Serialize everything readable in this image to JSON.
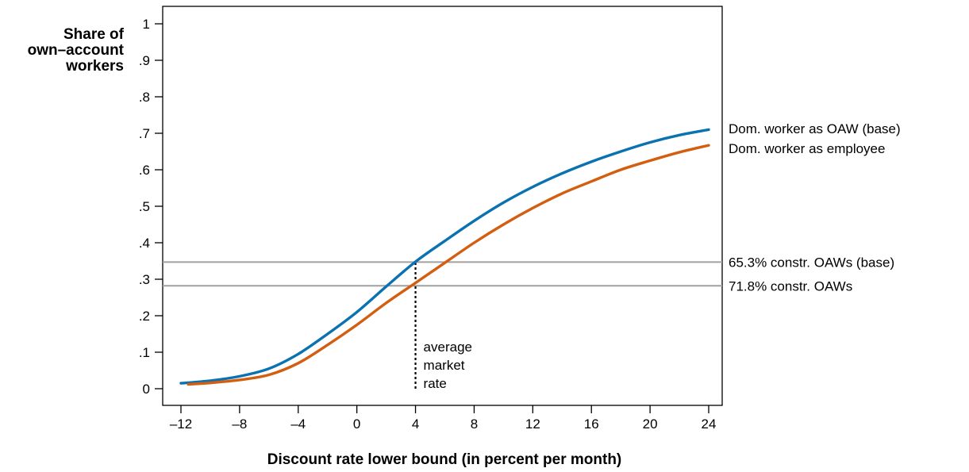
{
  "chart_data": {
    "type": "line",
    "title": "",
    "xlabel": "Discount rate lower bound (in percent per month)",
    "ylabel": [
      "Share of",
      "own–account",
      "workers"
    ],
    "xlim": [
      -12,
      24
    ],
    "ylim": [
      0,
      1
    ],
    "xticks": [
      -12,
      -8,
      -4,
      0,
      4,
      8,
      12,
      16,
      20,
      24
    ],
    "xtick_labels": [
      "–12",
      "–8",
      "–4",
      "0",
      "4",
      "8",
      "12",
      "16",
      "20",
      "24"
    ],
    "yticks": [
      0,
      0.1,
      0.2,
      0.3,
      0.4,
      0.5,
      0.6,
      0.7,
      0.8,
      0.9,
      1
    ],
    "ytick_labels": [
      "0",
      ".1",
      ".2",
      ".3",
      ".4",
      ".5",
      ".6",
      ".7",
      ".8",
      ".9",
      "1"
    ],
    "grid": false,
    "series": [
      {
        "name": "Dom. worker as OAW (base)",
        "color": "#0a72b0",
        "x": [
          -12,
          -10,
          -8,
          -6,
          -4,
          -2,
          0,
          2,
          4,
          6,
          8,
          10,
          12,
          14,
          16,
          18,
          20,
          22,
          24
        ],
        "y": [
          0.015,
          0.022,
          0.034,
          0.055,
          0.095,
          0.15,
          0.21,
          0.28,
          0.348,
          0.405,
          0.46,
          0.51,
          0.553,
          0.59,
          0.622,
          0.65,
          0.675,
          0.695,
          0.71
        ]
      },
      {
        "name": "Dom. worker as employee",
        "color": "#d45e10",
        "x": [
          -11.5,
          -10,
          -8,
          -6,
          -4,
          -2,
          0,
          2,
          4,
          6,
          8,
          10,
          12,
          14,
          16,
          18,
          20,
          22,
          24
        ],
        "y": [
          0.012,
          0.016,
          0.024,
          0.038,
          0.07,
          0.12,
          0.175,
          0.235,
          0.29,
          0.345,
          0.4,
          0.45,
          0.495,
          0.535,
          0.568,
          0.6,
          0.625,
          0.648,
          0.667
        ]
      }
    ],
    "reference_lines": [
      {
        "label": "65.3% constr. OAWs (base)",
        "y": 0.347,
        "color": "#a0a0a0"
      },
      {
        "label": "71.8% constr. OAWs",
        "y": 0.282,
        "color": "#a0a0a0"
      }
    ],
    "marker": {
      "x": 4,
      "y_from": 0,
      "y_to": 0.345,
      "label": [
        "average",
        "market",
        "rate"
      ]
    }
  }
}
